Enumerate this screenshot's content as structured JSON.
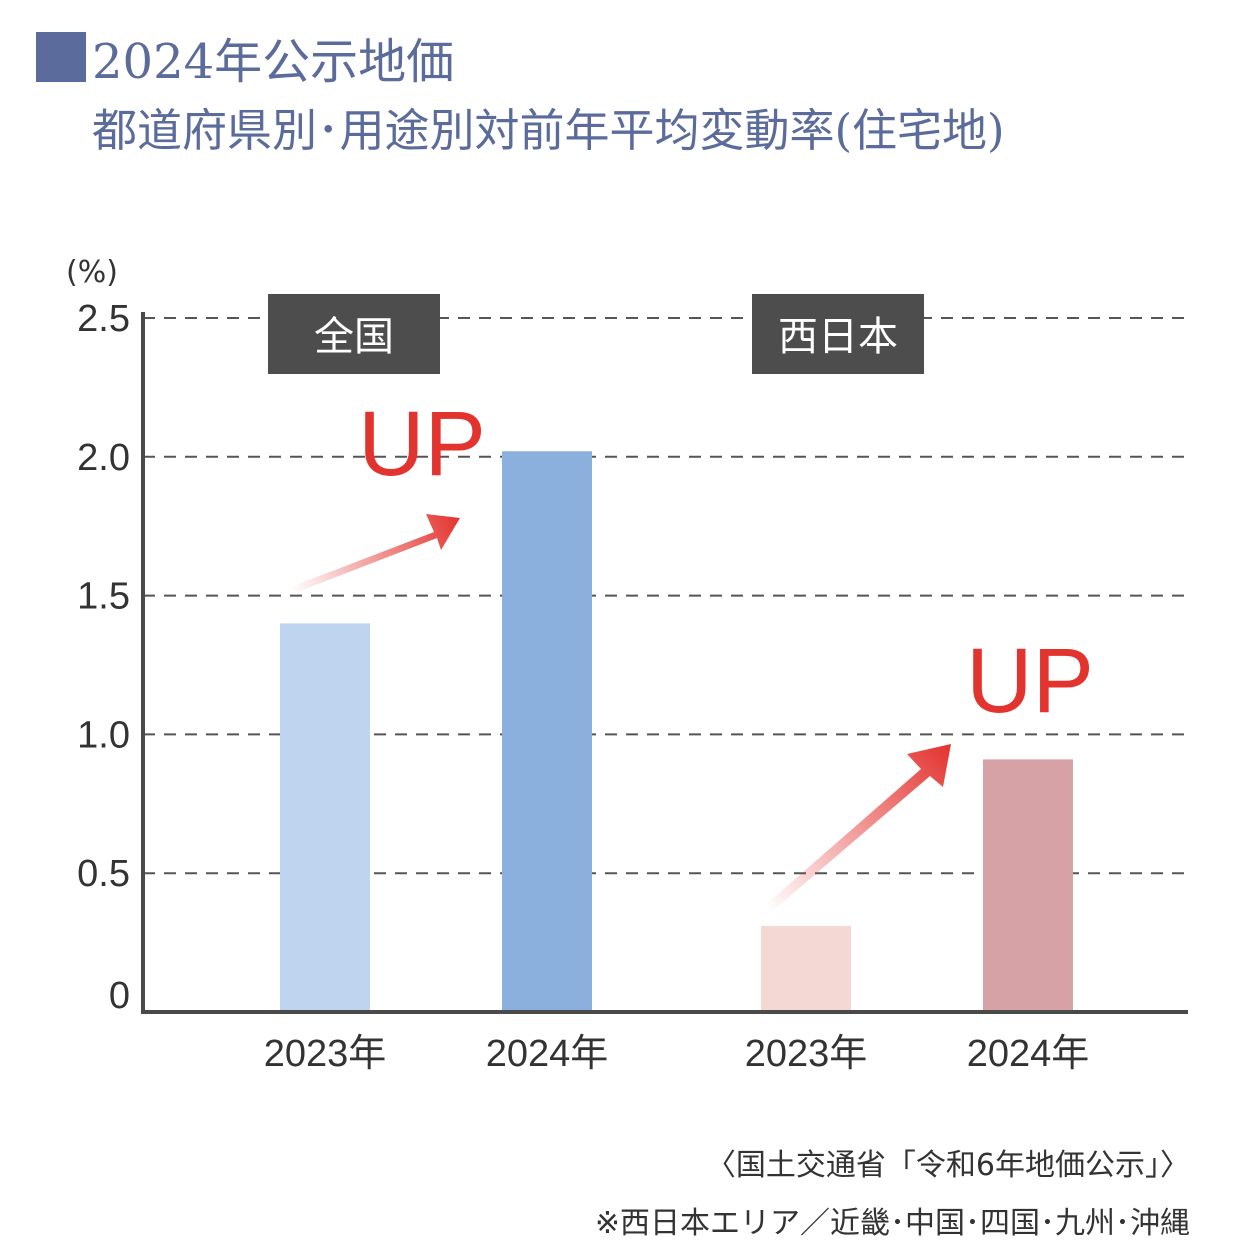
{
  "title": {
    "line1": "2024年公示地価",
    "line2": "都道府県別･用途別対前年平均変動率(住宅地)"
  },
  "chart_data": {
    "type": "bar",
    "y_unit_label": "(%)",
    "ylim": [
      0,
      2.5
    ],
    "y_ticks": [
      "0",
      "0.5",
      "1.0",
      "1.5",
      "2.0",
      "2.5"
    ],
    "grid": "dashed horizontal",
    "groups": [
      {
        "label": "全国",
        "up_label": "UP",
        "bars": [
          {
            "category": "2023年",
            "value": 1.4,
            "color": "#bed4ef"
          },
          {
            "category": "2024年",
            "value": 2.02,
            "color": "#8cb0dd"
          }
        ]
      },
      {
        "label": "西日本",
        "up_label": "UP",
        "bars": [
          {
            "category": "2023年",
            "value": 0.31,
            "color": "#f3d8d3"
          },
          {
            "category": "2024年",
            "value": 0.91,
            "color": "#d6a2a5"
          }
        ]
      }
    ],
    "colors": {
      "axis": "#4a4a4a",
      "grid": "#555555",
      "label_box": "#4d4d4d",
      "label_text": "#ffffff",
      "up": "#e3332f",
      "tick_text": "#333333"
    }
  },
  "footer": {
    "source": "〈国土交通省「令和6年地価公示」〉",
    "note": "※西日本エリア／近畿･中国･四国･九州･沖縄"
  }
}
